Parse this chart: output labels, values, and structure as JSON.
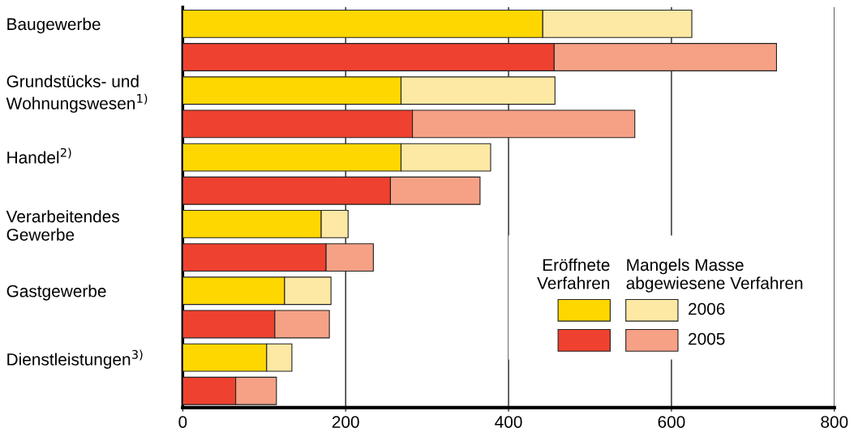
{
  "chart_data": {
    "type": "bar",
    "orientation": "horizontal",
    "stacked": true,
    "categories": [
      "Baugewerbe",
      null,
      "Grundstücks- und\nWohnungswesen$^{1)}$",
      null,
      "Handel$^{2)}$",
      null,
      "Verarbeitendes\nGewerbe",
      null,
      "Gastgewerbe",
      null,
      "Dienstleistungen$^{3)}$",
      null
    ],
    "series": [
      {
        "color": "#ffd700",
        "values": [
          442,
          null,
          268,
          null,
          268,
          null,
          170,
          null,
          125,
          null,
          103,
          null
        ]
      },
      {
        "name": "2006",
        "color": "#fde9a4",
        "values": [
          183,
          null,
          189,
          null,
          110,
          null,
          33,
          null,
          57,
          null,
          31,
          null
        ]
      },
      {
        "color": "#ef4130",
        "values": [
          null,
          456,
          null,
          282,
          null,
          255,
          null,
          176,
          null,
          113,
          null,
          65
        ]
      },
      {
        "name": "2005",
        "color": "#f6a186",
        "values": [
          null,
          273,
          null,
          273,
          null,
          110,
          null,
          58,
          null,
          67,
          null,
          50
        ]
      }
    ],
    "annotations": [
      "Eröffnete\nVerfahren",
      "Mangels Masse\nabgewiesene Verfahren"
    ],
    "xlim": [
      0,
      800
    ],
    "xticks": [
      0,
      200,
      400,
      600,
      800
    ],
    "grid": "x",
    "legend": "bottom right"
  }
}
